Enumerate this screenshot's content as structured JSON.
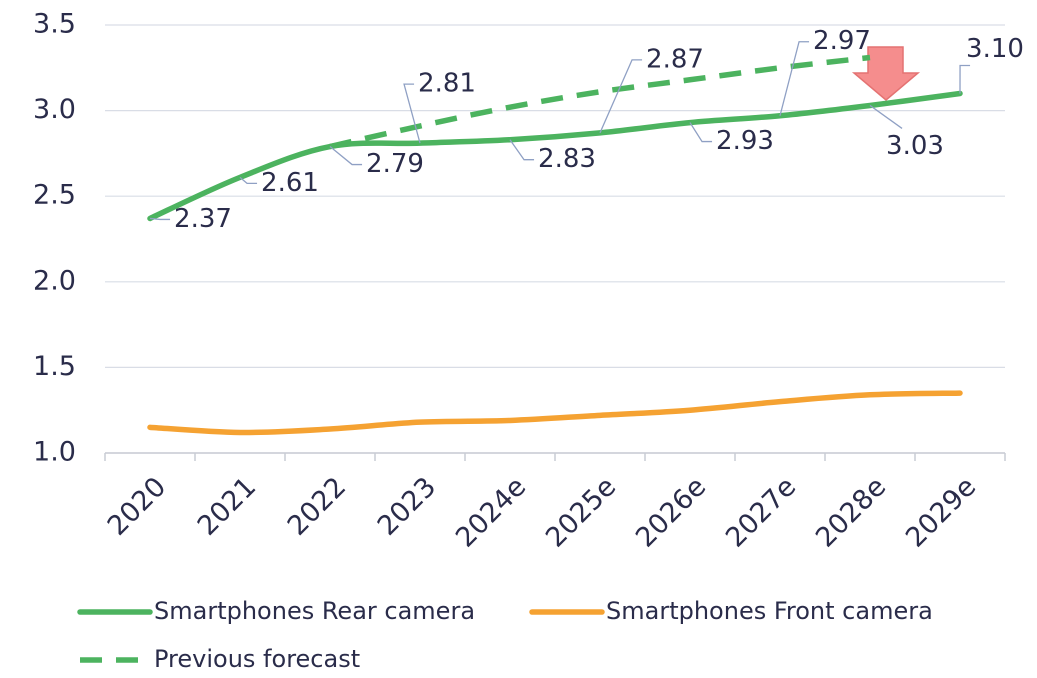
{
  "chart_data": {
    "type": "line",
    "categories": [
      "2020",
      "2021",
      "2022",
      "2023",
      "2024e",
      "2025e",
      "2026e",
      "2027e",
      "2028e",
      "2029e"
    ],
    "series": [
      {
        "name": "Smartphones Rear camera",
        "color": "#4cb35f",
        "dashed": false,
        "values": [
          2.37,
          2.61,
          2.79,
          2.81,
          2.83,
          2.87,
          2.93,
          2.97,
          3.03,
          3.1
        ],
        "value_labels": [
          "2.37",
          "2.61",
          "2.79",
          "2.81",
          "2.83",
          "2.87",
          "2.93",
          "2.97",
          "3.03",
          "3.10"
        ]
      },
      {
        "name": "Smartphones Front camera",
        "color": "#f5a232",
        "dashed": false,
        "values": [
          1.15,
          1.12,
          1.14,
          1.18,
          1.19,
          1.22,
          1.25,
          1.3,
          1.34,
          1.35
        ]
      },
      {
        "name": "Previous forecast",
        "color": "#4cb35f",
        "dashed": true,
        "values": [
          null,
          null,
          2.79,
          2.91,
          3.02,
          3.11,
          3.18,
          3.25,
          3.31,
          null
        ]
      }
    ],
    "ylim": [
      1.0,
      3.5
    ],
    "yticks": [
      {
        "value": 1.0,
        "label": "1.0"
      },
      1.5,
      {
        "value": 2.0,
        "label": "2.0"
      },
      2.5,
      {
        "value": 3.0,
        "label": "3.0"
      },
      3.5
    ],
    "grid": true
  }
}
